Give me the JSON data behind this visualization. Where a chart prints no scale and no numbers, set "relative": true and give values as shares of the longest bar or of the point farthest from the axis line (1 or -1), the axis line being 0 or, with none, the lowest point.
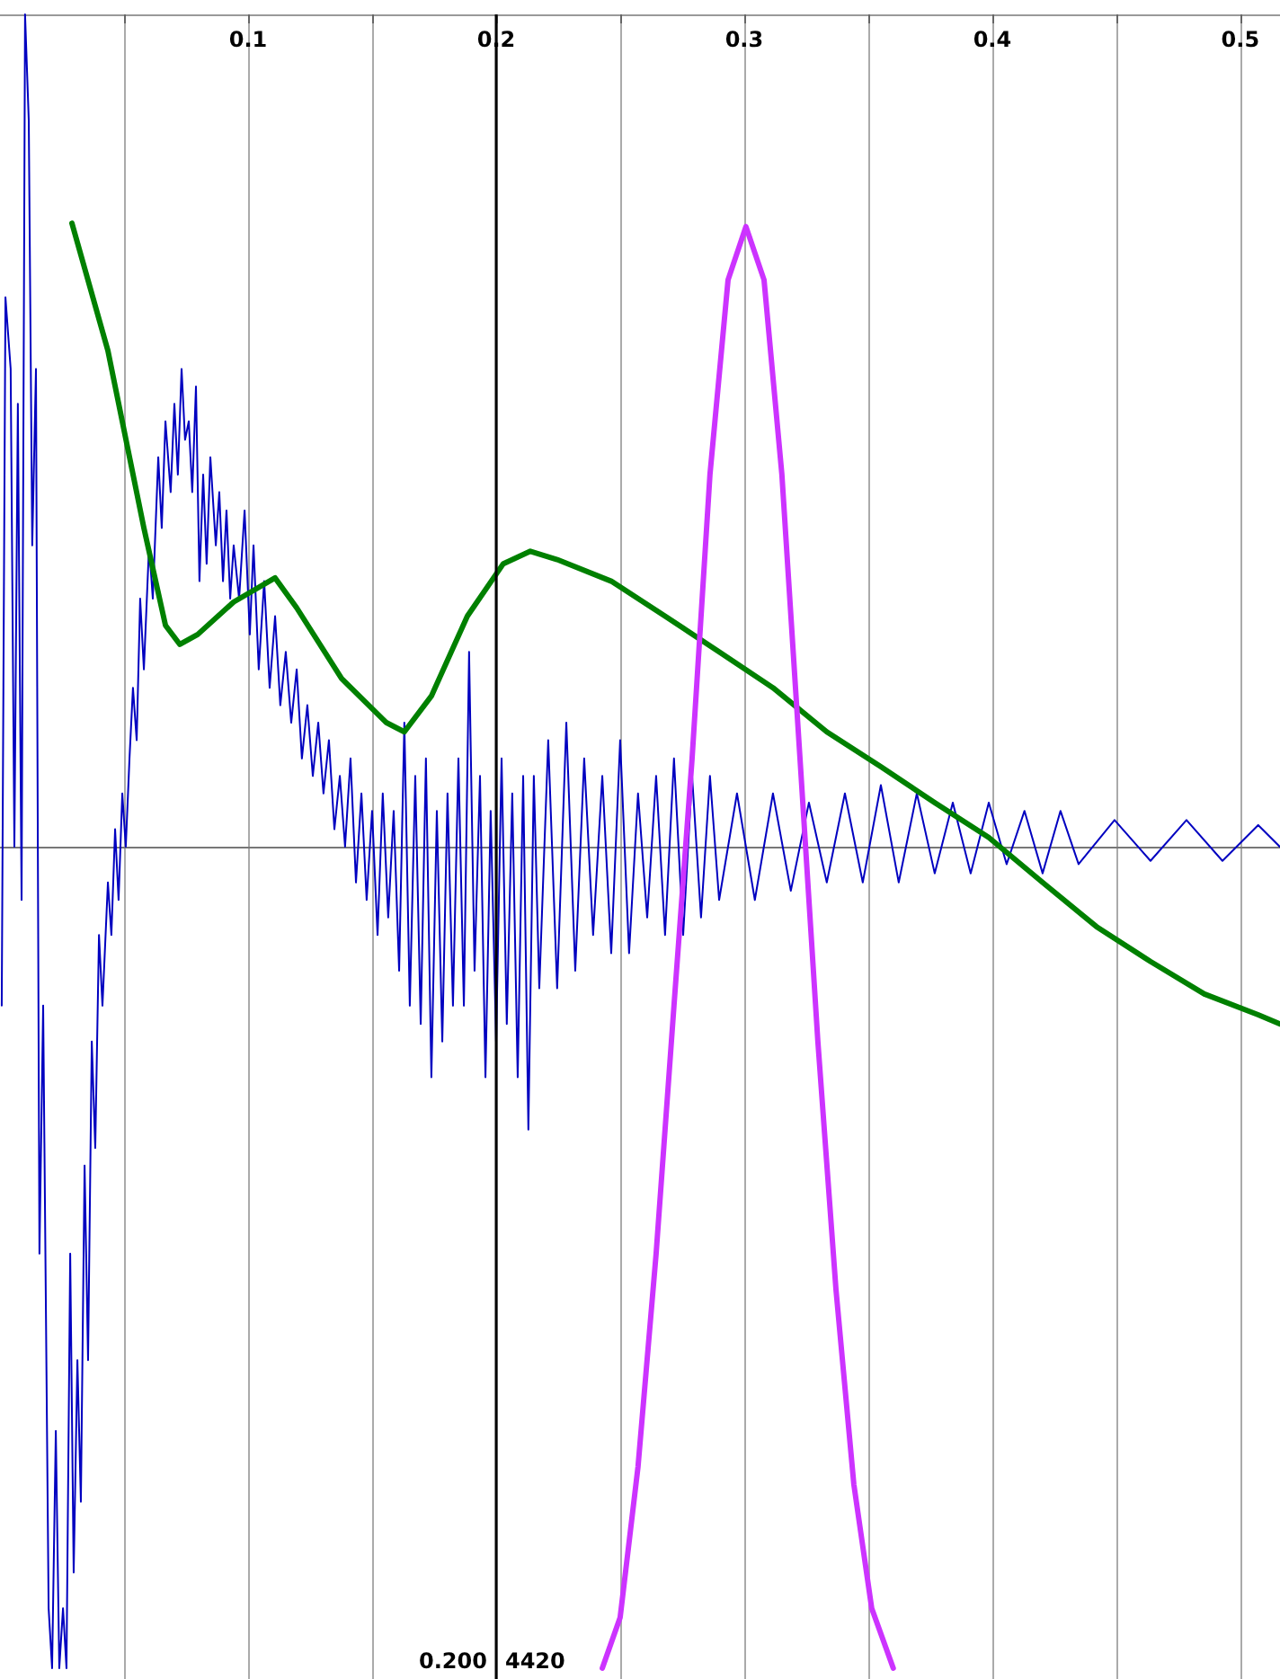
{
  "chart_data": {
    "type": "line",
    "relative": true,
    "marker": "none",
    "line_style": "solid",
    "grid": "x",
    "xlim": [
      0,
      0.516
    ],
    "xticks": [
      {
        "value": 0.05,
        "label": null
      },
      0.1,
      {
        "value": 0.15,
        "label": null
      },
      0.2,
      {
        "value": 0.25,
        "label": null
      },
      0.3,
      {
        "value": 0.35,
        "label": null
      },
      0.4,
      {
        "value": 0.45,
        "label": null
      },
      0.5
    ],
    "ref_lines": [
      {
        "axis": "x",
        "value": 0.2,
        "label": "0.200",
        "color": "#000000"
      }
    ],
    "annotations": [
      "4420"
    ],
    "series": [
      {
        "color": "#0000c0",
        "x": [
          0.0007,
          0.0022,
          0.0043,
          0.0058,
          0.0072,
          0.0087,
          0.0101,
          0.0116,
          0.013,
          0.0145,
          0.0159,
          0.0174,
          0.0196,
          0.021,
          0.0225,
          0.0239,
          0.0254,
          0.0268,
          0.0283,
          0.0297,
          0.0312,
          0.0326,
          0.0341,
          0.0355,
          0.037,
          0.0384,
          0.0399,
          0.0413,
          0.0435,
          0.0449,
          0.0464,
          0.0478,
          0.0493,
          0.0507,
          0.0522,
          0.0536,
          0.0551,
          0.0565,
          0.058,
          0.0601,
          0.0616,
          0.0638,
          0.0652,
          0.0667,
          0.0688,
          0.0703,
          0.0717,
          0.0732,
          0.0746,
          0.0761,
          0.0775,
          0.079,
          0.0804,
          0.0819,
          0.0833,
          0.0848,
          0.087,
          0.0884,
          0.0899,
          0.0913,
          0.0928,
          0.0942,
          0.0964,
          0.0986,
          0.1007,
          0.1022,
          0.1043,
          0.1065,
          0.1087,
          0.1109,
          0.113,
          0.1152,
          0.1174,
          0.1196,
          0.1217,
          0.1239,
          0.1261,
          0.1283,
          0.1304,
          0.1326,
          0.1348,
          0.137,
          0.1391,
          0.1413,
          0.1435,
          0.1457,
          0.1478,
          0.15,
          0.1522,
          0.1543,
          0.1565,
          0.1587,
          0.1609,
          0.163,
          0.1652,
          0.1674,
          0.1696,
          0.1717,
          0.1739,
          0.1761,
          0.1783,
          0.1804,
          0.1826,
          0.1848,
          0.187,
          0.1891,
          0.1913,
          0.1935,
          0.1957,
          0.1978,
          0.2,
          0.2022,
          0.2043,
          0.2065,
          0.2087,
          0.2109,
          0.213,
          0.2152,
          0.2174,
          0.221,
          0.2246,
          0.2283,
          0.2319,
          0.2355,
          0.2391,
          0.2428,
          0.2464,
          0.25,
          0.2536,
          0.2572,
          0.2609,
          0.2645,
          0.2681,
          0.2717,
          0.2754,
          0.279,
          0.2826,
          0.2862,
          0.2899,
          0.2971,
          0.3043,
          0.3116,
          0.3188,
          0.3261,
          0.3333,
          0.3406,
          0.3478,
          0.3551,
          0.3623,
          0.3696,
          0.3768,
          0.3841,
          0.3913,
          0.3986,
          0.4058,
          0.413,
          0.4203,
          0.4275,
          0.4348,
          0.4493,
          0.4638,
          0.4783,
          0.4928,
          0.5072,
          0.5159
        ],
        "values": [
          -0.191,
          0.66,
          0.574,
          0,
          0.532,
          -0.064,
          1.0,
          0.872,
          0.362,
          0.574,
          -0.489,
          -0.191,
          -0.915,
          -0.987,
          -0.702,
          -0.987,
          -0.915,
          -0.987,
          -0.489,
          -0.872,
          -0.617,
          -0.787,
          -0.383,
          -0.617,
          -0.234,
          -0.362,
          -0.106,
          -0.191,
          -0.043,
          -0.106,
          0.021,
          -0.064,
          0.064,
          0,
          0.106,
          0.191,
          0.128,
          0.298,
          0.213,
          0.362,
          0.298,
          0.468,
          0.383,
          0.511,
          0.426,
          0.532,
          0.447,
          0.574,
          0.489,
          0.511,
          0.426,
          0.553,
          0.319,
          0.447,
          0.34,
          0.468,
          0.362,
          0.426,
          0.319,
          0.404,
          0.298,
          0.362,
          0.298,
          0.404,
          0.255,
          0.362,
          0.213,
          0.319,
          0.191,
          0.277,
          0.17,
          0.234,
          0.149,
          0.213,
          0.106,
          0.17,
          0.085,
          0.149,
          0.064,
          0.128,
          0.021,
          0.085,
          0,
          0.106,
          -0.043,
          0.064,
          -0.064,
          0.043,
          -0.106,
          0.064,
          -0.085,
          0.043,
          -0.149,
          0.149,
          -0.191,
          0.085,
          -0.213,
          0.106,
          -0.277,
          0.043,
          -0.234,
          0.064,
          -0.191,
          0.106,
          -0.191,
          0.234,
          -0.149,
          0.085,
          -0.277,
          0.043,
          -0.234,
          0.106,
          -0.213,
          0.064,
          -0.277,
          0.085,
          -0.34,
          0.085,
          -0.17,
          0.128,
          -0.17,
          0.149,
          -0.149,
          0.106,
          -0.106,
          0.085,
          -0.128,
          0.128,
          -0.128,
          0.064,
          -0.085,
          0.085,
          -0.106,
          0.106,
          -0.106,
          0.085,
          -0.085,
          0.085,
          -0.064,
          0.064,
          -0.064,
          0.064,
          -0.053,
          0.053,
          -0.043,
          0.064,
          -0.043,
          0.074,
          -0.043,
          0.064,
          -0.032,
          0.053,
          -0.032,
          0.053,
          -0.021,
          0.043,
          -0.032,
          0.043,
          -0.021,
          0.032,
          -0.017,
          0.032,
          -0.017,
          0.026,
          0
        ]
      },
      {
        "color": "#008000",
        "x": [
          0.029,
          0.0435,
          0.058,
          0.0667,
          0.0725,
          0.0797,
          0.0942,
          0.1109,
          0.1196,
          0.1377,
          0.1558,
          0.163,
          0.1739,
          0.1884,
          0.2029,
          0.2138,
          0.2246,
          0.2464,
          0.2681,
          0.2899,
          0.3116,
          0.3333,
          0.3551,
          0.3768,
          0.3986,
          0.4203,
          0.442,
          0.4638,
          0.4855,
          0.5072,
          0.516
        ],
        "values": [
          0.749,
          0.596,
          0.383,
          0.266,
          0.243,
          0.255,
          0.294,
          0.323,
          0.287,
          0.202,
          0.149,
          0.138,
          0.181,
          0.277,
          0.34,
          0.355,
          0.345,
          0.319,
          0.277,
          0.234,
          0.191,
          0.138,
          0.096,
          0.053,
          0.011,
          -0.043,
          -0.096,
          -0.138,
          -0.177,
          -0.202,
          -0.213
        ]
      },
      {
        "color": "#cc33ff",
        "x": [
          0.2428,
          0.25,
          0.2572,
          0.2645,
          0.2717,
          0.279,
          0.2862,
          0.2935,
          0.3007,
          0.308,
          0.3152,
          0.3225,
          0.3297,
          0.337,
          0.3442,
          0.3514,
          0.3601
        ],
        "values": [
          -0.987,
          -0.926,
          -0.745,
          -0.489,
          -0.191,
          0.106,
          0.447,
          0.681,
          0.745,
          0.681,
          0.447,
          0.106,
          -0.234,
          -0.532,
          -0.766,
          -0.915,
          -0.987
        ]
      }
    ]
  }
}
